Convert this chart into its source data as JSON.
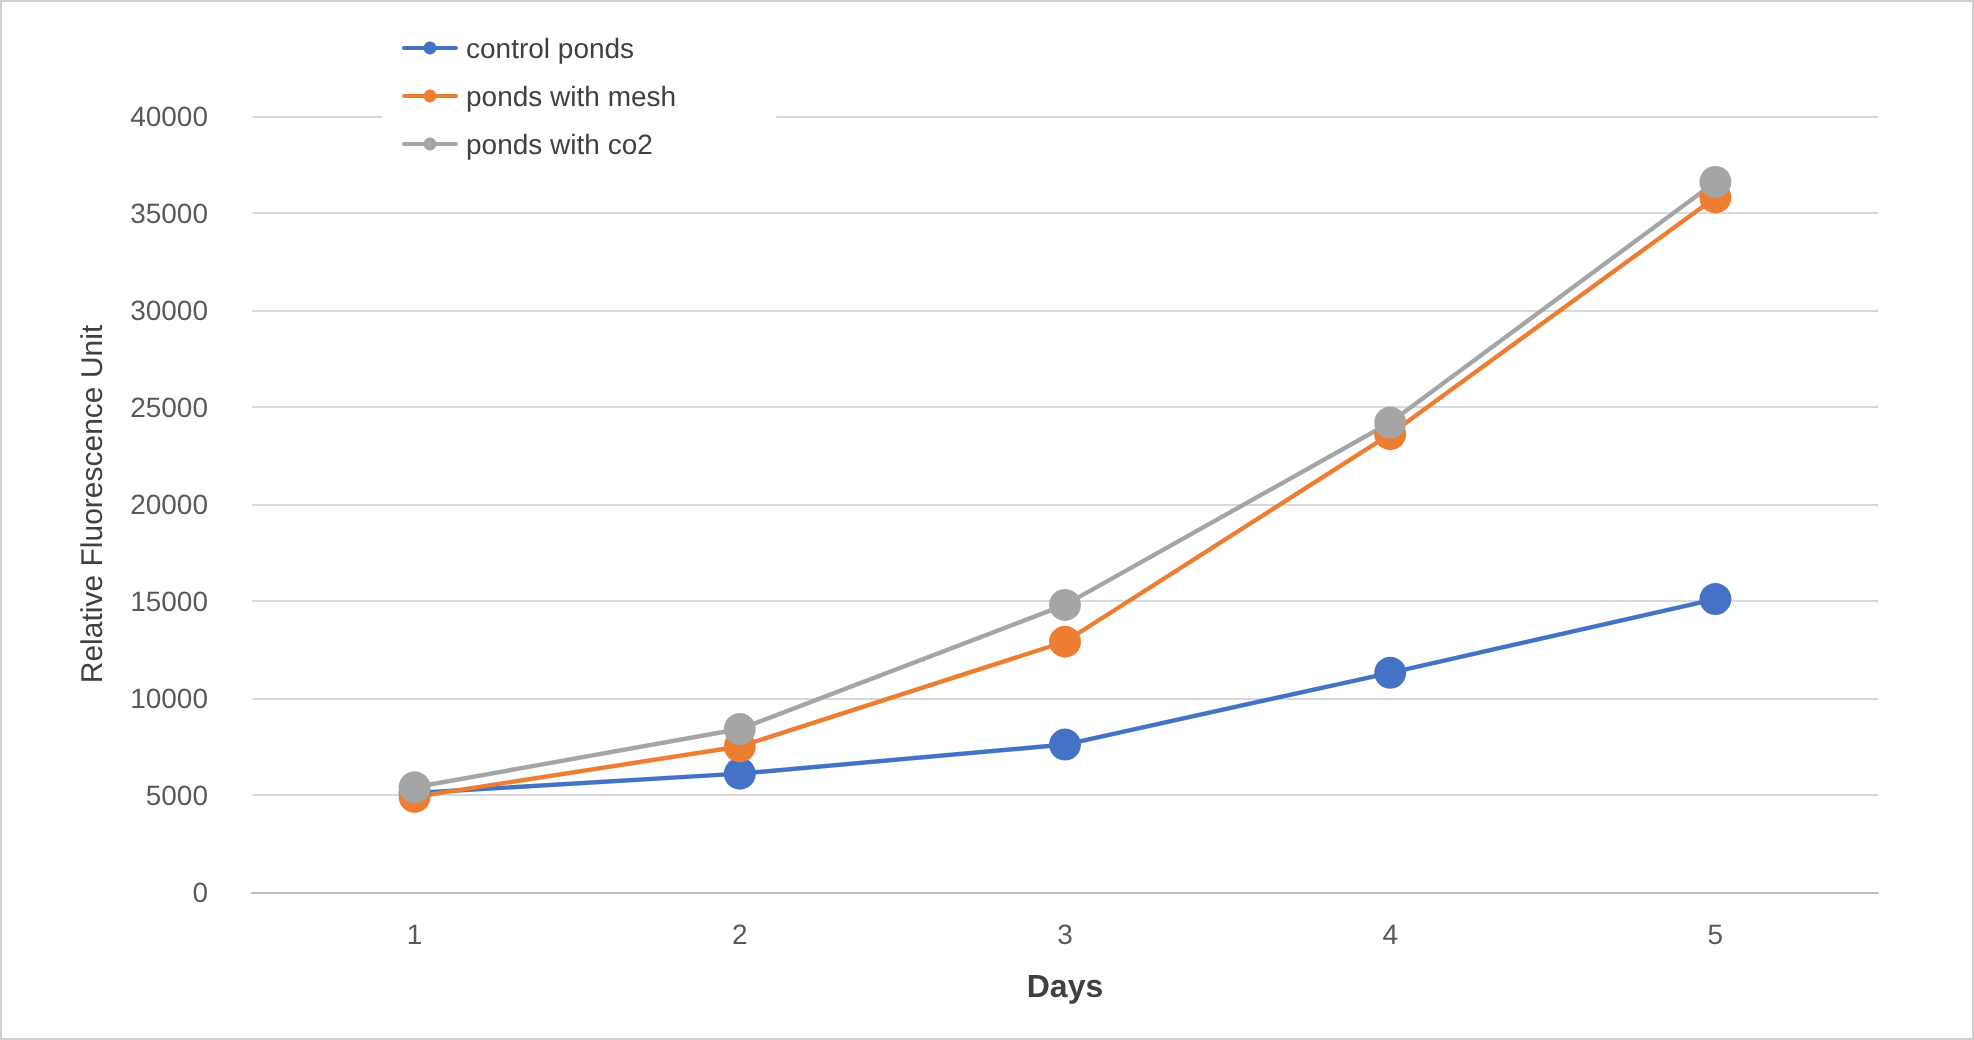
{
  "chart_data": {
    "type": "line",
    "xlabel": "Days",
    "ylabel": "Relative Fluorescence Unit",
    "categories": [
      "1",
      "2",
      "3",
      "4",
      "5"
    ],
    "series": [
      {
        "name": "control ponds",
        "color": "#4472c4",
        "values": [
          5100,
          6100,
          7600,
          11300,
          15100
        ]
      },
      {
        "name": "ponds with mesh",
        "color": "#ed7d31",
        "values": [
          4900,
          7500,
          12900,
          23600,
          35800
        ]
      },
      {
        "name": "ponds with co2",
        "color": "#a5a5a5",
        "values": [
          5400,
          8400,
          14800,
          24200,
          36600
        ]
      }
    ],
    "ylim": [
      0,
      40000
    ],
    "yticks": [
      0,
      5000,
      10000,
      15000,
      20000,
      25000,
      30000,
      35000,
      40000
    ],
    "grid": "y",
    "legend": "top left",
    "marker": "circle",
    "line_style": "solid"
  }
}
